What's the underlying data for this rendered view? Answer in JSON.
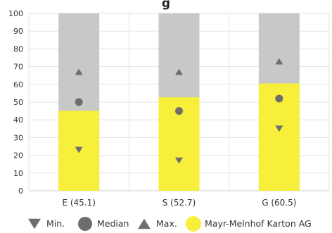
{
  "chart_data": {
    "type": "bar",
    "title": "g",
    "categories": [
      "E (45.1)",
      "S (52.7)",
      "G (60.5)"
    ],
    "ylim": [
      0,
      100
    ],
    "yticks": [
      0,
      10,
      20,
      30,
      40,
      50,
      60,
      70,
      80,
      90,
      100
    ],
    "grid": true,
    "legend_position": "bottom",
    "series": [
      {
        "name": "Mayr-Melnhof Karton AG",
        "marker": "bar",
        "color": "#f7ef3a",
        "values": [
          45.1,
          52.7,
          60.5
        ]
      },
      {
        "name": "Min.",
        "marker": "triangle-down",
        "color": "#6e6e6e",
        "values": [
          23,
          17,
          35
        ]
      },
      {
        "name": "Median",
        "marker": "circle",
        "color": "#6e6e6e",
        "values": [
          50,
          45,
          52
        ]
      },
      {
        "name": "Max.",
        "marker": "triangle-up",
        "color": "#6e6e6e",
        "values": [
          67,
          67,
          73
        ]
      }
    ],
    "background_bar": {
      "color": "#c8c8c8",
      "value": 100
    }
  }
}
